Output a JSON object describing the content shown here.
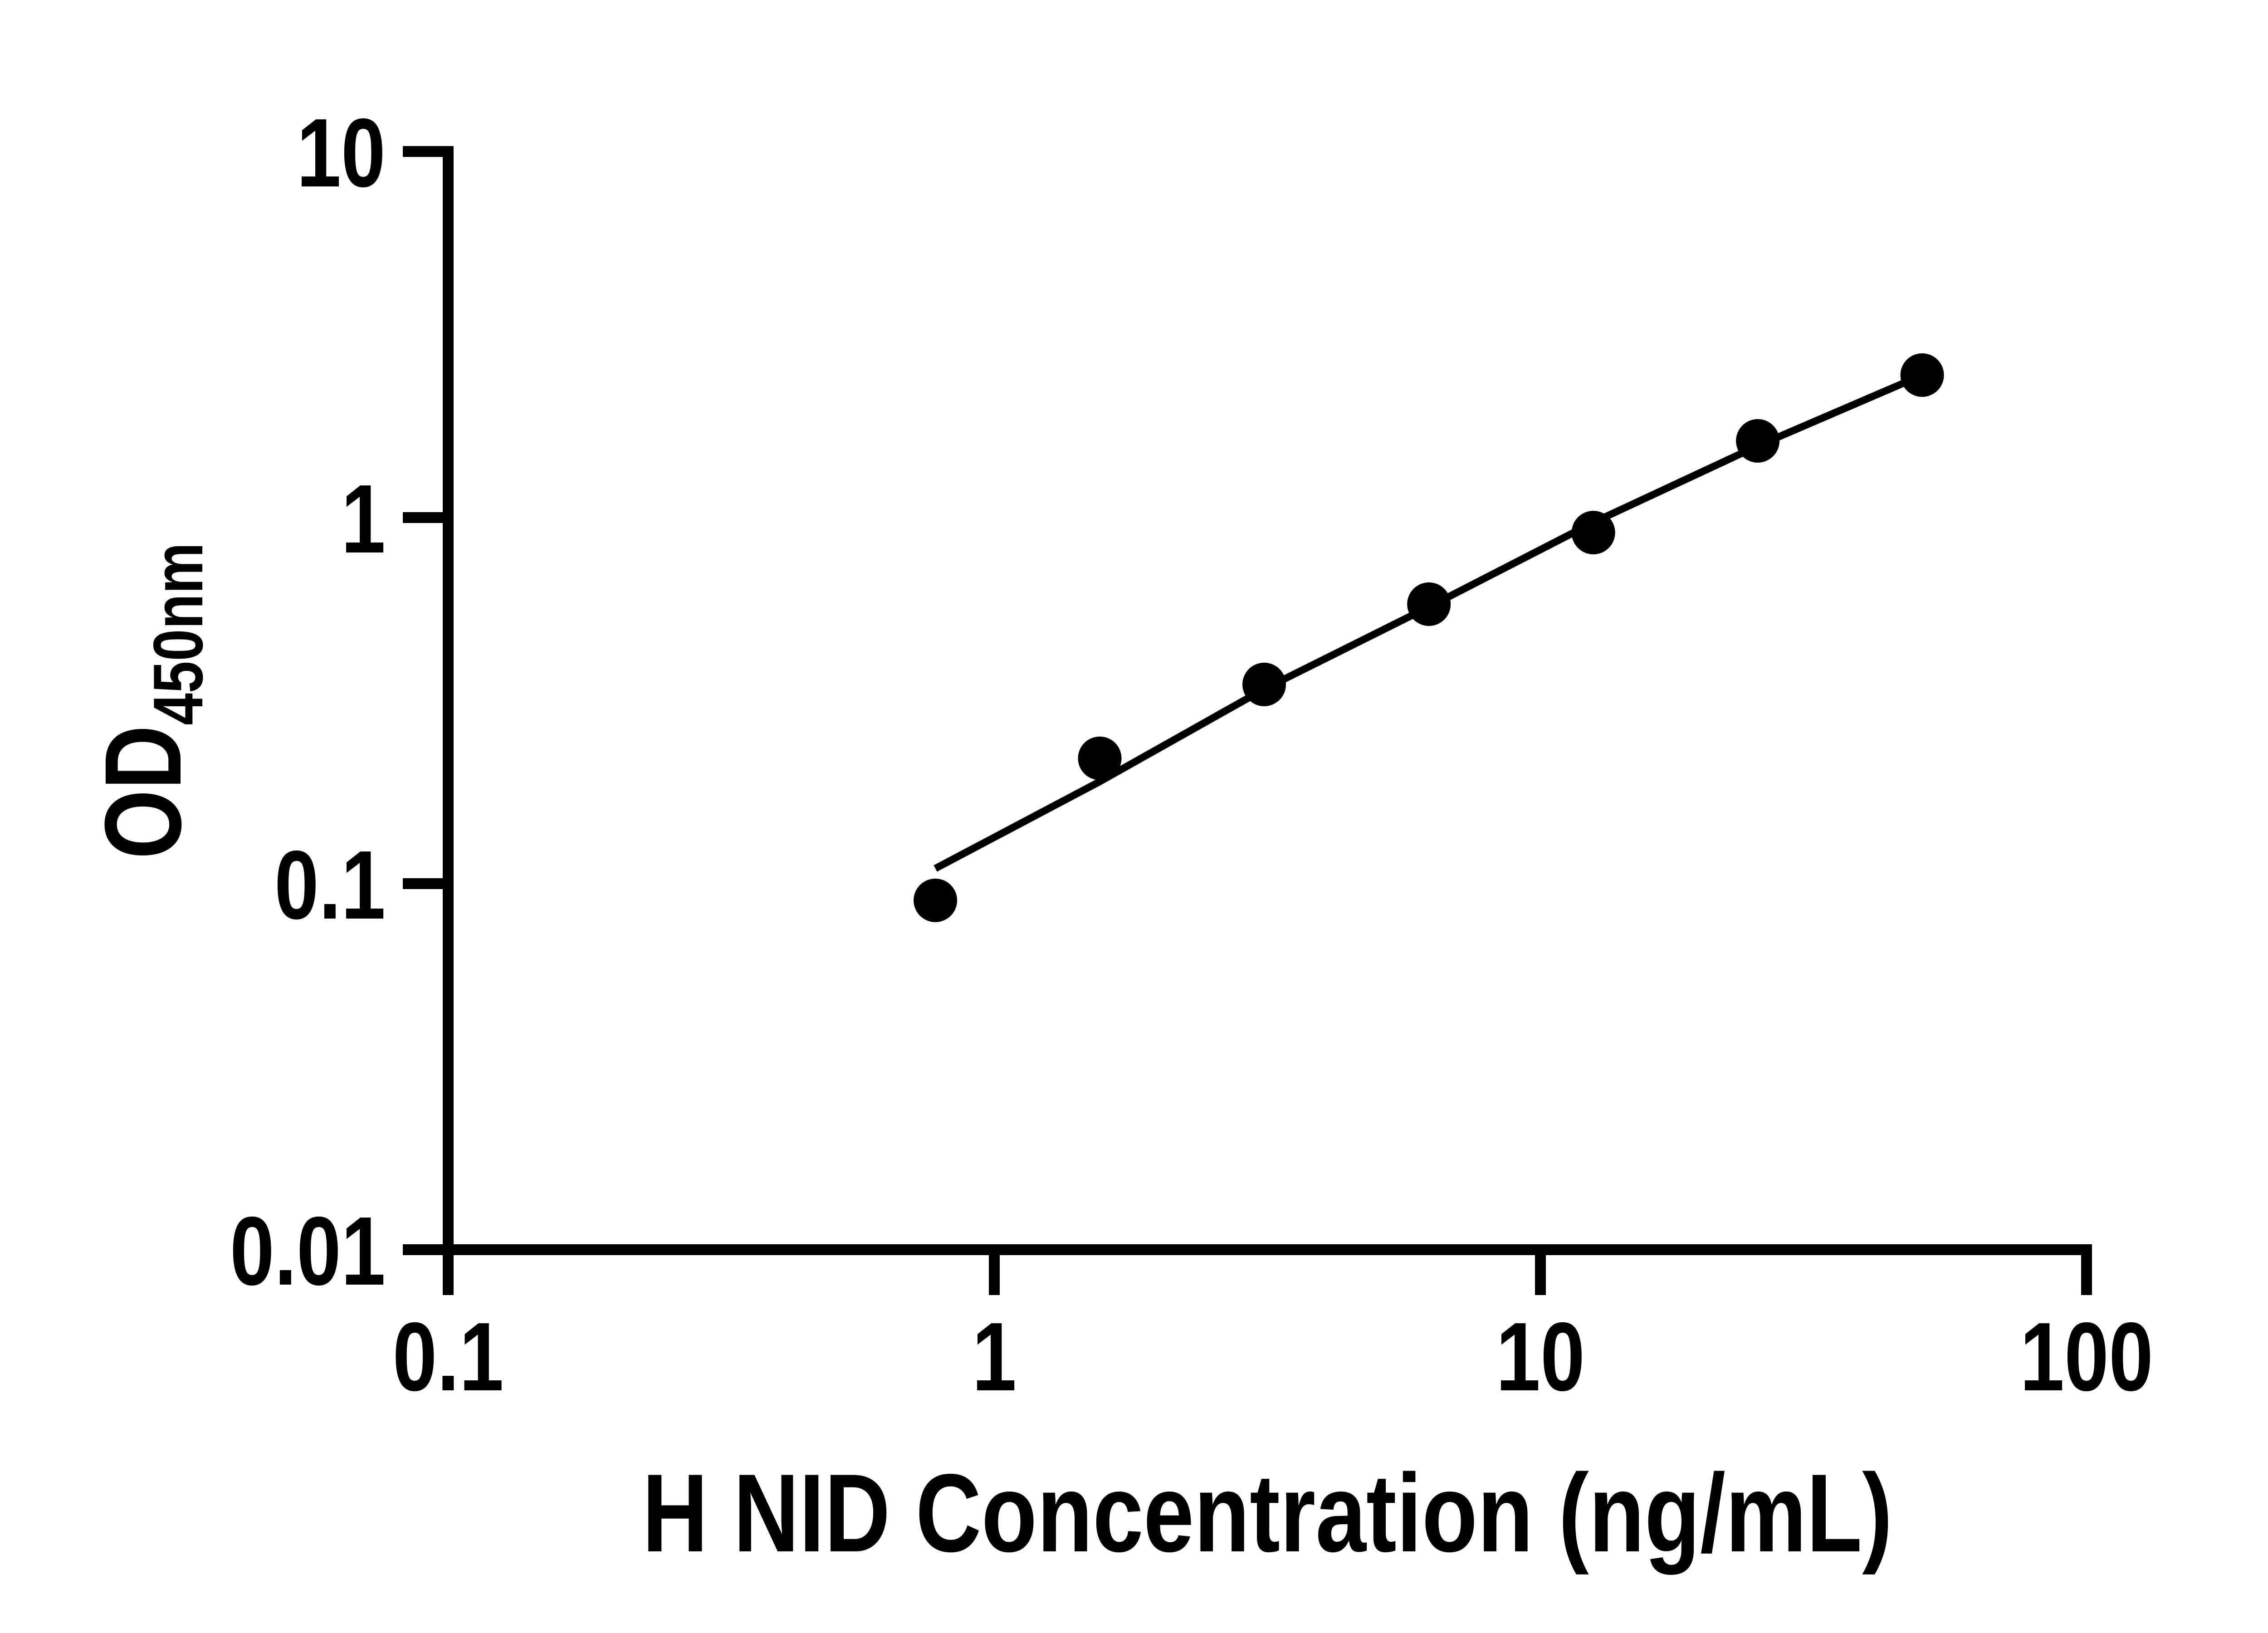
{
  "figure": {
    "background_color": "#ffffff",
    "axis_color": "#000000"
  },
  "chart_data": {
    "type": "scatter",
    "title": "",
    "xlabel": "H NID Concentration (ng/mL)",
    "ylabel_main": "OD",
    "ylabel_sub": "450nm",
    "x_scale": "log10",
    "y_scale": "log10",
    "xlim": [
      0.1,
      100
    ],
    "ylim": [
      0.01,
      10
    ],
    "grid": false,
    "legend": null,
    "x_ticks": [
      {
        "value": 0.1,
        "label": "0.1"
      },
      {
        "value": 1,
        "label": "1"
      },
      {
        "value": 10,
        "label": "10"
      },
      {
        "value": 100,
        "label": "100"
      }
    ],
    "y_ticks": [
      {
        "value": 10,
        "label": "10"
      },
      {
        "value": 1,
        "label": "1"
      },
      {
        "value": 0.1,
        "label": "0.1"
      },
      {
        "value": 0.01,
        "label": "0.01"
      }
    ],
    "series": [
      {
        "name": "standard_points",
        "type": "scatter",
        "marker": "circle",
        "color": "#000000",
        "x": [
          0.78,
          1.56,
          3.12,
          6.25,
          12.5,
          25,
          50
        ],
        "y": [
          0.09,
          0.22,
          0.35,
          0.58,
          0.91,
          1.62,
          2.45
        ]
      },
      {
        "name": "fit_line",
        "type": "line",
        "color": "#000000",
        "x": [
          0.78,
          1.56,
          3.12,
          6.25,
          12.5,
          25,
          50
        ],
        "y": [
          0.11,
          0.19,
          0.34,
          0.57,
          0.97,
          1.57,
          2.45
        ]
      }
    ]
  }
}
